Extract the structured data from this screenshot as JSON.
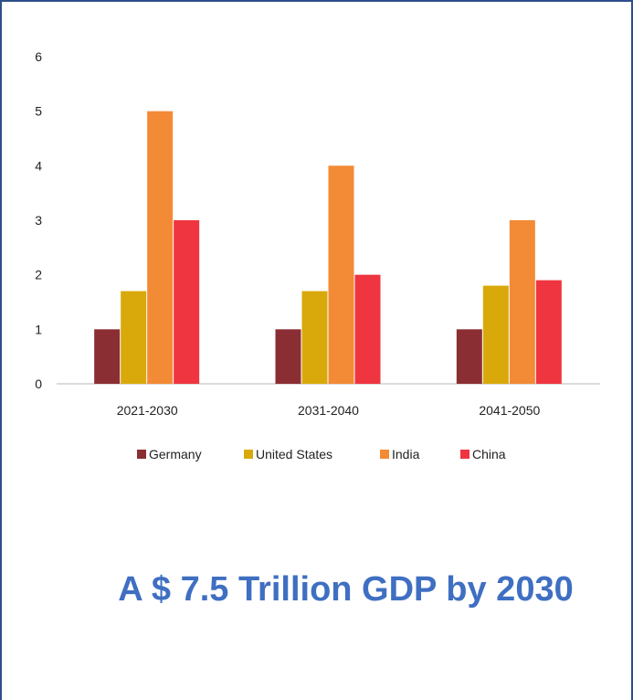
{
  "chart_data": {
    "type": "bar",
    "categories": [
      "2021-2030",
      "2031-2040",
      "2041-2050"
    ],
    "series": [
      {
        "name": "Germany",
        "values": [
          1,
          1,
          1
        ],
        "color": "#8b2e34"
      },
      {
        "name": "United States",
        "values": [
          1.7,
          1.7,
          1.8
        ],
        "color": "#d9a90b"
      },
      {
        "name": "India",
        "values": [
          5,
          4,
          3
        ],
        "color": "#f38a36"
      },
      {
        "name": "China",
        "values": [
          3,
          2,
          1.9
        ],
        "color": "#ef3540"
      }
    ],
    "yticks": [
      "0",
      "1",
      "2",
      "3",
      "4",
      "5",
      "6"
    ],
    "ylim": [
      0,
      6
    ],
    "grid": false,
    "legend_position": "bottom"
  },
  "caption": "A $ 7.5 Trillion GDP by 2030"
}
